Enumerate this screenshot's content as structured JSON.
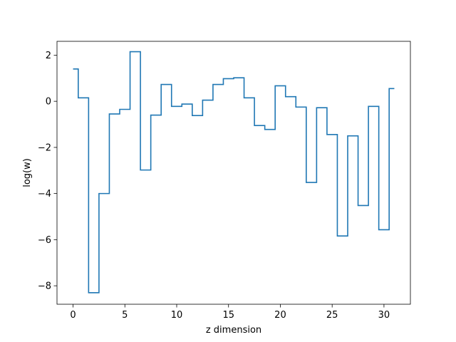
{
  "chart_data": {
    "type": "line",
    "drawstyle": "steps-mid",
    "title": "",
    "xlabel": "z dimension",
    "ylabel": "log(w)",
    "xlim": [
      -1.55,
      32.55
    ],
    "ylim": [
      -8.8,
      2.6
    ],
    "xticks": [
      0,
      5,
      10,
      15,
      20,
      25,
      30
    ],
    "xtick_labels": [
      "0",
      "5",
      "10",
      "15",
      "20",
      "25",
      "30"
    ],
    "yticks": [
      2,
      0,
      -2,
      -4,
      -6,
      -8
    ],
    "ytick_labels": [
      "2",
      "0",
      "−2",
      "−4",
      "−6",
      "−8"
    ],
    "grid": false,
    "series": [
      {
        "color": "#1f77b4",
        "x": [
          0,
          1,
          2,
          3,
          4,
          5,
          6,
          7,
          8,
          9,
          10,
          11,
          12,
          13,
          14,
          15,
          16,
          17,
          18,
          19,
          20,
          21,
          22,
          23,
          24,
          25,
          26,
          27,
          28,
          29,
          30,
          31
        ],
        "y": [
          1.4,
          0.15,
          -8.3,
          -4.0,
          -0.55,
          -0.35,
          2.15,
          -2.98,
          -0.6,
          0.73,
          -0.22,
          -0.12,
          -0.62,
          0.05,
          0.73,
          0.98,
          1.02,
          0.15,
          -1.05,
          -1.22,
          0.67,
          0.2,
          -0.25,
          -3.52,
          -0.28,
          -1.44,
          -5.84,
          -1.5,
          -4.52,
          -0.22,
          -5.57,
          0.55
        ]
      }
    ]
  }
}
